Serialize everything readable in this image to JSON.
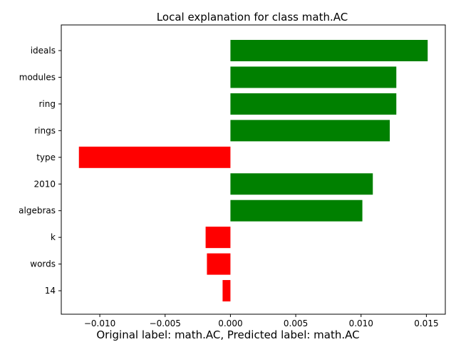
{
  "chart_data": {
    "type": "bar",
    "orientation": "horizontal",
    "title": "Local explanation for class math.AC",
    "categories": [
      "ideals",
      "modules",
      "ring",
      "rings",
      "type",
      "2010",
      "algebras",
      "k",
      "words",
      "14"
    ],
    "values": [
      0.0151,
      0.0127,
      0.0127,
      0.0122,
      -0.0116,
      0.0109,
      0.0101,
      -0.0019,
      -0.0018,
      -0.0006
    ],
    "xlim": [
      -0.01295,
      0.01645
    ],
    "xticks": [
      -0.01,
      -0.005,
      0.0,
      0.005,
      0.01,
      0.015
    ],
    "xtick_labels": [
      "−0.010",
      "−0.005",
      "0.000",
      "0.005",
      "0.010",
      "0.015"
    ],
    "xlabel": "Original label: math.AC, Predicted label: math.AC",
    "ylabel": "",
    "grid": false,
    "colors": {
      "positive": "#008000",
      "negative": "#ff0000"
    }
  }
}
